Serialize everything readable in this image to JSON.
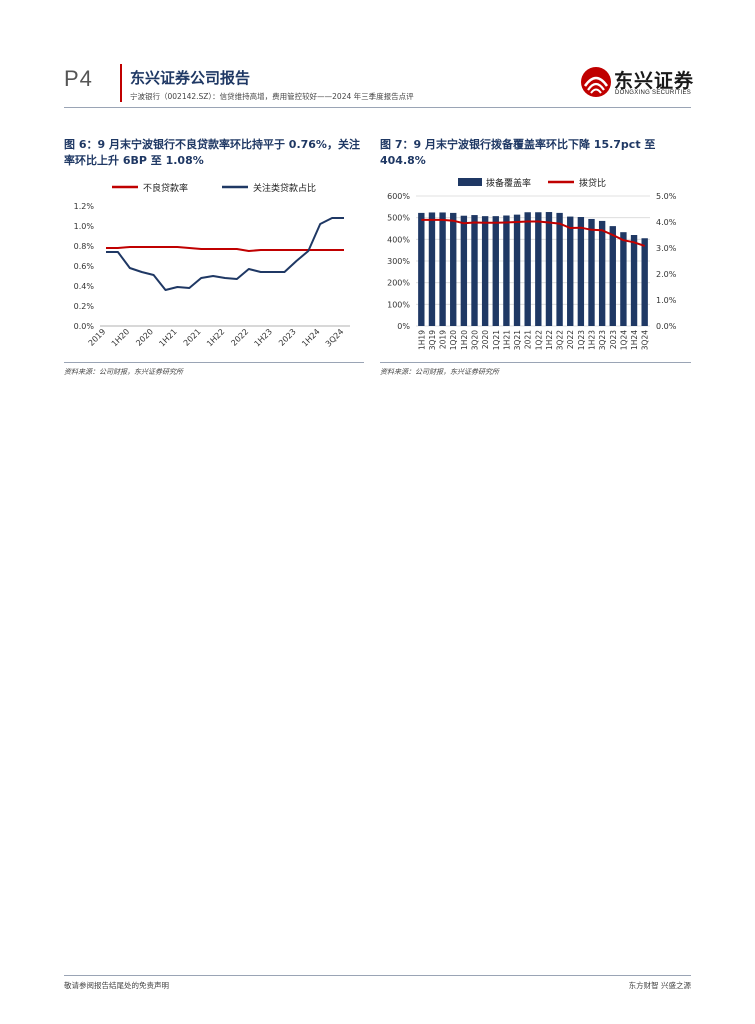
{
  "header": {
    "page": "P4",
    "title": "东兴证券公司报告",
    "subtitle": "宁波银行（002142.SZ）：信贷维持高增，费用管控较好——2024 年三季度报告点评",
    "logo_cn": "东兴证券",
    "logo_en": "DONGXING SECURITIES",
    "brand_color": "#c00000"
  },
  "figures": [
    {
      "caption": "图 6：9 月末宁波银行不良贷款率环比持平于 0.76%，关注率环比上升 6BP 至 1.08%",
      "source": "资料来源：公司财报，东兴证券研究所"
    },
    {
      "caption": "图 7：9 月末宁波银行拨备覆盖率环比下降 15.7pct 至 404.8%",
      "source": "资料来源：公司财报，东兴证券研究所"
    }
  ],
  "chart_data": [
    {
      "type": "line",
      "x": [
        "2019",
        "",
        "1H20",
        "",
        "2020",
        "",
        "1H21",
        "",
        "2021",
        "",
        "1H22",
        "",
        "2022",
        "",
        "1H23",
        "",
        "2023",
        "",
        "1H24",
        "",
        "3Q24"
      ],
      "x_tick_labels": [
        "2019",
        "1H20",
        "2020",
        "1H21",
        "2021",
        "1H22",
        "2022",
        "1H23",
        "2023",
        "1H24"
      ],
      "series": [
        {
          "name": "不良贷款率",
          "color": "#c00000",
          "values": [
            0.78,
            0.78,
            0.79,
            0.79,
            0.79,
            0.79,
            0.79,
            0.78,
            0.77,
            0.77,
            0.77,
            0.77,
            0.75,
            0.76,
            0.76,
            0.76,
            0.76,
            0.76,
            0.76,
            0.76,
            0.76
          ]
        },
        {
          "name": "关注类贷款占比",
          "color": "#1f3864",
          "values": [
            0.74,
            0.74,
            0.58,
            0.54,
            0.51,
            0.36,
            0.39,
            0.38,
            0.48,
            0.5,
            0.48,
            0.47,
            0.57,
            0.54,
            0.54,
            0.54,
            0.65,
            0.75,
            1.02,
            1.08,
            1.08
          ]
        }
      ],
      "y_ticks": [
        "0.0%",
        "0.2%",
        "0.4%",
        "0.6%",
        "0.8%",
        "1.0%",
        "1.2%"
      ],
      "ylim": [
        0,
        1.2
      ],
      "legend": "top"
    },
    {
      "type": "bar+line",
      "categories": [
        "1H19",
        "3Q19",
        "2019",
        "1Q20",
        "1H20",
        "3Q20",
        "2020",
        "1Q21",
        "1H21",
        "3Q21",
        "2021",
        "1Q22",
        "1H22",
        "3Q22",
        "2022",
        "1Q23",
        "1H23",
        "3Q23",
        "2023",
        "1Q24",
        "1H24",
        "3Q24"
      ],
      "series": [
        {
          "name": "拨备覆盖率",
          "color": "#1f3864",
          "axis": "left",
          "values": [
            522,
            524,
            524,
            522,
            509,
            512,
            507,
            507,
            510,
            514,
            525,
            525,
            526,
            522,
            505,
            503,
            494,
            485,
            461,
            433,
            420,
            405
          ]
        },
        {
          "name": "拨贷比",
          "color": "#c00000",
          "axis": "right",
          "values": [
            4.08,
            4.08,
            4.08,
            4.05,
            3.95,
            3.98,
            3.97,
            3.97,
            3.98,
            4.0,
            4.02,
            4.02,
            3.98,
            3.94,
            3.77,
            3.78,
            3.7,
            3.68,
            3.5,
            3.3,
            3.22,
            3.08
          ]
        }
      ],
      "y_left_ticks": [
        "0%",
        "100%",
        "200%",
        "300%",
        "400%",
        "500%",
        "600%"
      ],
      "ylim_left": [
        0,
        600
      ],
      "y_right_ticks": [
        "0.0%",
        "1.0%",
        "2.0%",
        "3.0%",
        "4.0%",
        "5.0%"
      ],
      "ylim_right": [
        0,
        5
      ],
      "grid": "horizontal",
      "legend": "top"
    }
  ],
  "footer": {
    "left": "敬请参阅报告结尾处的免责声明",
    "right": "东方财智  兴盛之源"
  }
}
